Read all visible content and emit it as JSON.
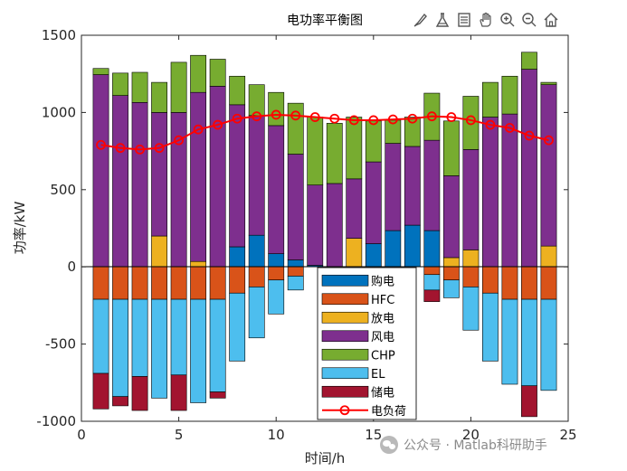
{
  "toolbar": {
    "icons": [
      "brush-icon",
      "flask-icon",
      "legend-icon",
      "pan-hand-icon",
      "zoom-in-icon",
      "zoom-out-icon",
      "home-icon"
    ]
  },
  "watermark": {
    "text": "公众号 · Matlab科研助手"
  },
  "chart_data": {
    "type": "bar",
    "stacked": true,
    "title": "电功率平衡图",
    "xlabel": "时间/h",
    "ylabel": "功率/kW",
    "xlim": [
      0,
      25
    ],
    "ylim": [
      -1000,
      1500
    ],
    "xticks": [
      0,
      5,
      10,
      15,
      20,
      25
    ],
    "yticks": [
      -1000,
      -500,
      0,
      500,
      1000,
      1500
    ],
    "grid": false,
    "legend_position": "bottom-center",
    "x": [
      1,
      2,
      3,
      4,
      5,
      6,
      7,
      8,
      9,
      10,
      11,
      12,
      13,
      14,
      15,
      16,
      17,
      18,
      19,
      20,
      21,
      22,
      23,
      24
    ],
    "series": [
      {
        "name": "购电",
        "color": "#0072BD",
        "values": [
          0,
          0,
          0,
          0,
          0,
          0,
          0,
          130,
          205,
          85,
          45,
          10,
          0,
          0,
          150,
          235,
          270,
          235,
          0,
          0,
          0,
          0,
          0,
          0
        ]
      },
      {
        "name": "HFC",
        "color": "#D95319",
        "values": [
          -210,
          -210,
          -210,
          -210,
          -210,
          -210,
          -210,
          -170,
          -130,
          -85,
          -60,
          0,
          0,
          0,
          0,
          0,
          0,
          -50,
          -85,
          -130,
          -170,
          -210,
          -210,
          -210
        ]
      },
      {
        "name": "放电",
        "color": "#EDB120",
        "values": [
          0,
          0,
          0,
          200,
          0,
          35,
          0,
          0,
          0,
          0,
          0,
          0,
          0,
          185,
          0,
          0,
          0,
          0,
          60,
          110,
          0,
          0,
          0,
          135
        ]
      },
      {
        "name": "风电",
        "color": "#7E2F8E",
        "values": [
          1245,
          1110,
          1065,
          800,
          1000,
          1095,
          1170,
          920,
          775,
          830,
          685,
          520,
          540,
          385,
          530,
          565,
          510,
          585,
          530,
          650,
          970,
          990,
          1280,
          1045
        ]
      },
      {
        "name": "CHP",
        "color": "#77AC30",
        "values": [
          40,
          145,
          195,
          195,
          325,
          240,
          175,
          185,
          200,
          215,
          330,
          440,
          390,
          400,
          265,
          150,
          190,
          305,
          355,
          345,
          225,
          245,
          110,
          15
        ]
      },
      {
        "name": "EL",
        "color": "#4DBEEE",
        "values": [
          -480,
          -630,
          -500,
          -640,
          -490,
          -670,
          -600,
          -440,
          -330,
          -220,
          -90,
          0,
          0,
          0,
          0,
          0,
          0,
          -100,
          -115,
          -280,
          -440,
          -550,
          -560,
          -590
        ]
      },
      {
        "name": "储电",
        "color": "#A2142F",
        "values": [
          -230,
          -60,
          -220,
          0,
          -230,
          0,
          -40,
          0,
          0,
          0,
          0,
          0,
          0,
          0,
          0,
          0,
          0,
          -75,
          0,
          0,
          0,
          0,
          -200,
          0
        ]
      }
    ],
    "load_line": {
      "name": "电负荷",
      "color": "#FF0000",
      "marker": "circle",
      "values": [
        790,
        770,
        760,
        770,
        820,
        890,
        920,
        960,
        975,
        985,
        980,
        970,
        960,
        950,
        950,
        955,
        960,
        975,
        970,
        950,
        920,
        900,
        850,
        820
      ]
    }
  }
}
